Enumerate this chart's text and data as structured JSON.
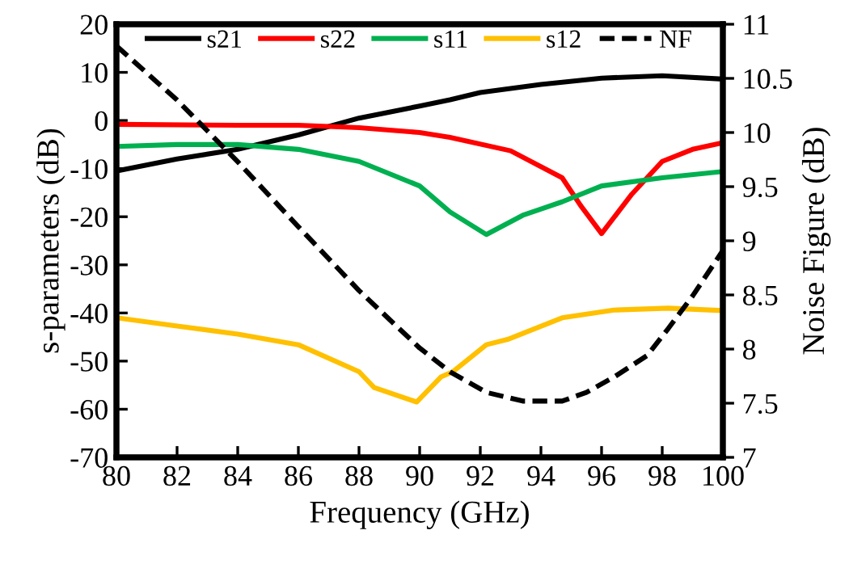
{
  "chart_data": {
    "type": "line",
    "xlabel": "Frequency (GHz)",
    "ylabel": "s-parameters (dB)",
    "y2label": "Noise Figure (dB)",
    "xlim": [
      80,
      100
    ],
    "xticks": [
      80,
      82,
      84,
      86,
      88,
      90,
      92,
      94,
      96,
      98,
      100
    ],
    "ylim": [
      -70,
      20
    ],
    "yticks": [
      -70,
      -60,
      -50,
      -40,
      -30,
      -20,
      -10,
      0,
      10,
      20
    ],
    "y2lim": [
      7,
      11
    ],
    "y2ticks": [
      7,
      7.5,
      8,
      8.5,
      9,
      9.5,
      10,
      10.5,
      11
    ],
    "grid": false,
    "legend": "top",
    "marker": "none",
    "series": [
      {
        "name": "s21",
        "color": "#000000",
        "line_style": "solid",
        "x": [
          80,
          82,
          84,
          86,
          88,
          90,
          91,
          92,
          94,
          96,
          98,
          100
        ],
        "values": [
          -10.5,
          -8,
          -6,
          -3,
          0.5,
          3,
          4.3,
          5.8,
          7.5,
          8.8,
          9.3,
          8.6
        ]
      },
      {
        "name": "s22",
        "color": "#ff0000",
        "line_style": "solid",
        "x": [
          80,
          84,
          86,
          88,
          90,
          91,
          93,
          94.7,
          95.3,
          96,
          97,
          98,
          99,
          100
        ],
        "values": [
          -0.8,
          -1,
          -1,
          -1.5,
          -2.5,
          -3.5,
          -6.3,
          -11.9,
          -17.6,
          -23.5,
          -15.3,
          -8.5,
          -6,
          -4.6
        ]
      },
      {
        "name": "s11",
        "color": "#00b050",
        "line_style": "solid",
        "x": [
          80,
          82,
          84,
          86,
          88,
          90,
          91,
          92.2,
          93.4,
          94.7,
          96,
          98,
          100
        ],
        "values": [
          -5.4,
          -5,
          -5,
          -6,
          -8.5,
          -13.6,
          -19,
          -23.7,
          -19.7,
          -16.9,
          -13.6,
          -11.9,
          -10.6
        ]
      },
      {
        "name": "s12",
        "color": "#ffc000",
        "line_style": "solid",
        "x": [
          80,
          82,
          84,
          86,
          88,
          88.5,
          89.9,
          90.7,
          91.1,
          92.2,
          92.9,
          94.7,
          96.4,
          98.2,
          100
        ],
        "values": [
          -41,
          -42.7,
          -44.4,
          -46.6,
          -52.2,
          -55.5,
          -58.5,
          -53.3,
          -52.2,
          -46.6,
          -45.5,
          -41,
          -39.4,
          -39,
          -39.5
        ]
      },
      {
        "name": "NF",
        "color": "#000000",
        "line_style": "dashed",
        "axis": "y2",
        "x": [
          80,
          82,
          84,
          86,
          88,
          90,
          91,
          92.2,
          93.4,
          94.7,
          95.5,
          96.4,
          97.5,
          98.2,
          99,
          100
        ],
        "values": [
          10.8,
          10.3,
          9.73,
          9.13,
          8.54,
          8.01,
          7.79,
          7.6,
          7.52,
          7.52,
          7.6,
          7.74,
          7.94,
          8.19,
          8.49,
          8.91
        ]
      }
    ]
  }
}
